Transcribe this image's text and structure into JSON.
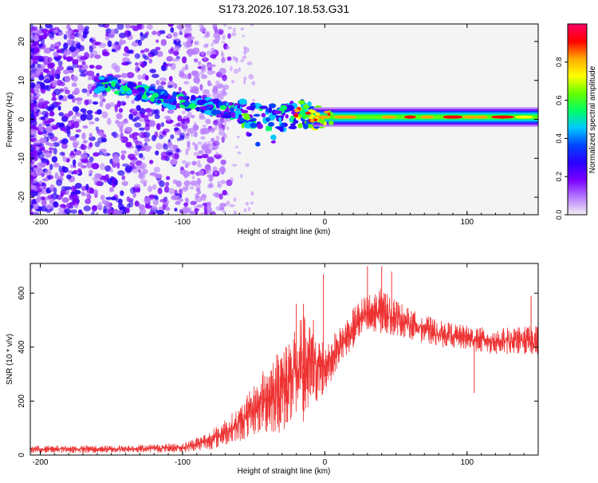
{
  "title": "S173.2026.107.18.53.G31",
  "chart_data": [
    {
      "type": "heatmap",
      "name": "spectrogram",
      "xlabel": "Height of straight line (km)",
      "ylabel": "Frequency (Hz)",
      "xlim": [
        -207,
        150
      ],
      "ylim": [
        -24.5,
        24.5
      ],
      "xticks": [
        -200,
        -100,
        0,
        100
      ],
      "yticks": [
        -20,
        -10,
        0,
        10,
        20
      ],
      "ridge": [
        {
          "x": -150,
          "f": 9
        },
        {
          "x": -130,
          "f": 7
        },
        {
          "x": -110,
          "f": 5
        },
        {
          "x": -90,
          "f": 4
        },
        {
          "x": -70,
          "f": 2.5
        },
        {
          "x": -50,
          "f": 1
        },
        {
          "x": -30,
          "f": 0.5
        },
        {
          "x": -15,
          "f": 1.5
        },
        {
          "x": 0,
          "f": 0.5
        },
        {
          "x": 50,
          "f": 0.5
        },
        {
          "x": 100,
          "f": 0.5
        },
        {
          "x": 150,
          "f": 0.5
        }
      ],
      "colorbar": {
        "label": "Normalized spectral amplitude",
        "range": [
          0,
          1
        ],
        "ticks": [
          "0.0",
          "0.2",
          "0.4",
          "0.6",
          "0.8"
        ],
        "colors": [
          "#f2f2f2",
          "#b77bff",
          "#7a00ff",
          "#2a00ff",
          "#0044ff",
          "#00c8ff",
          "#00ff66",
          "#66ff00",
          "#ffff00",
          "#ffaa00",
          "#ff0000",
          "#ff0066"
        ]
      }
    },
    {
      "type": "line",
      "name": "snr",
      "xlabel": "Height of straight line (km)",
      "ylabel": "SNR (10 * v/v)",
      "xlim": [
        -207,
        150
      ],
      "ylim": [
        0,
        710
      ],
      "xticks": [
        -200,
        -100,
        0,
        100
      ],
      "yticks": [
        0,
        200,
        400,
        600
      ],
      "color": "#ee3333",
      "envelope": [
        {
          "x": -207,
          "lo": 8,
          "hi": 35
        },
        {
          "x": -150,
          "lo": 8,
          "hi": 35
        },
        {
          "x": -100,
          "lo": 10,
          "hi": 45
        },
        {
          "x": -80,
          "lo": 20,
          "hi": 90
        },
        {
          "x": -60,
          "lo": 50,
          "hi": 180
        },
        {
          "x": -45,
          "lo": 80,
          "hi": 300
        },
        {
          "x": -30,
          "lo": 80,
          "hi": 420
        },
        {
          "x": -15,
          "lo": 120,
          "hi": 520
        },
        {
          "x": 0,
          "lo": 230,
          "hi": 420
        },
        {
          "x": 10,
          "lo": 330,
          "hi": 470
        },
        {
          "x": 25,
          "lo": 430,
          "hi": 580
        },
        {
          "x": 40,
          "lo": 450,
          "hi": 620
        },
        {
          "x": 60,
          "lo": 430,
          "hi": 540
        },
        {
          "x": 80,
          "lo": 400,
          "hi": 500
        },
        {
          "x": 100,
          "lo": 390,
          "hi": 480
        },
        {
          "x": 120,
          "lo": 370,
          "hi": 470
        },
        {
          "x": 150,
          "lo": 370,
          "hi": 480
        }
      ],
      "spikes": [
        {
          "x": -1,
          "y": 670
        },
        {
          "x": -20,
          "y": 560
        },
        {
          "x": -15,
          "y": 560
        },
        {
          "x": -8,
          "y": 500
        },
        {
          "x": 30,
          "y": 700
        },
        {
          "x": 40,
          "y": 700
        },
        {
          "x": 47,
          "y": 680
        },
        {
          "x": 105,
          "y": 230
        },
        {
          "x": 145,
          "y": 590
        }
      ]
    }
  ]
}
